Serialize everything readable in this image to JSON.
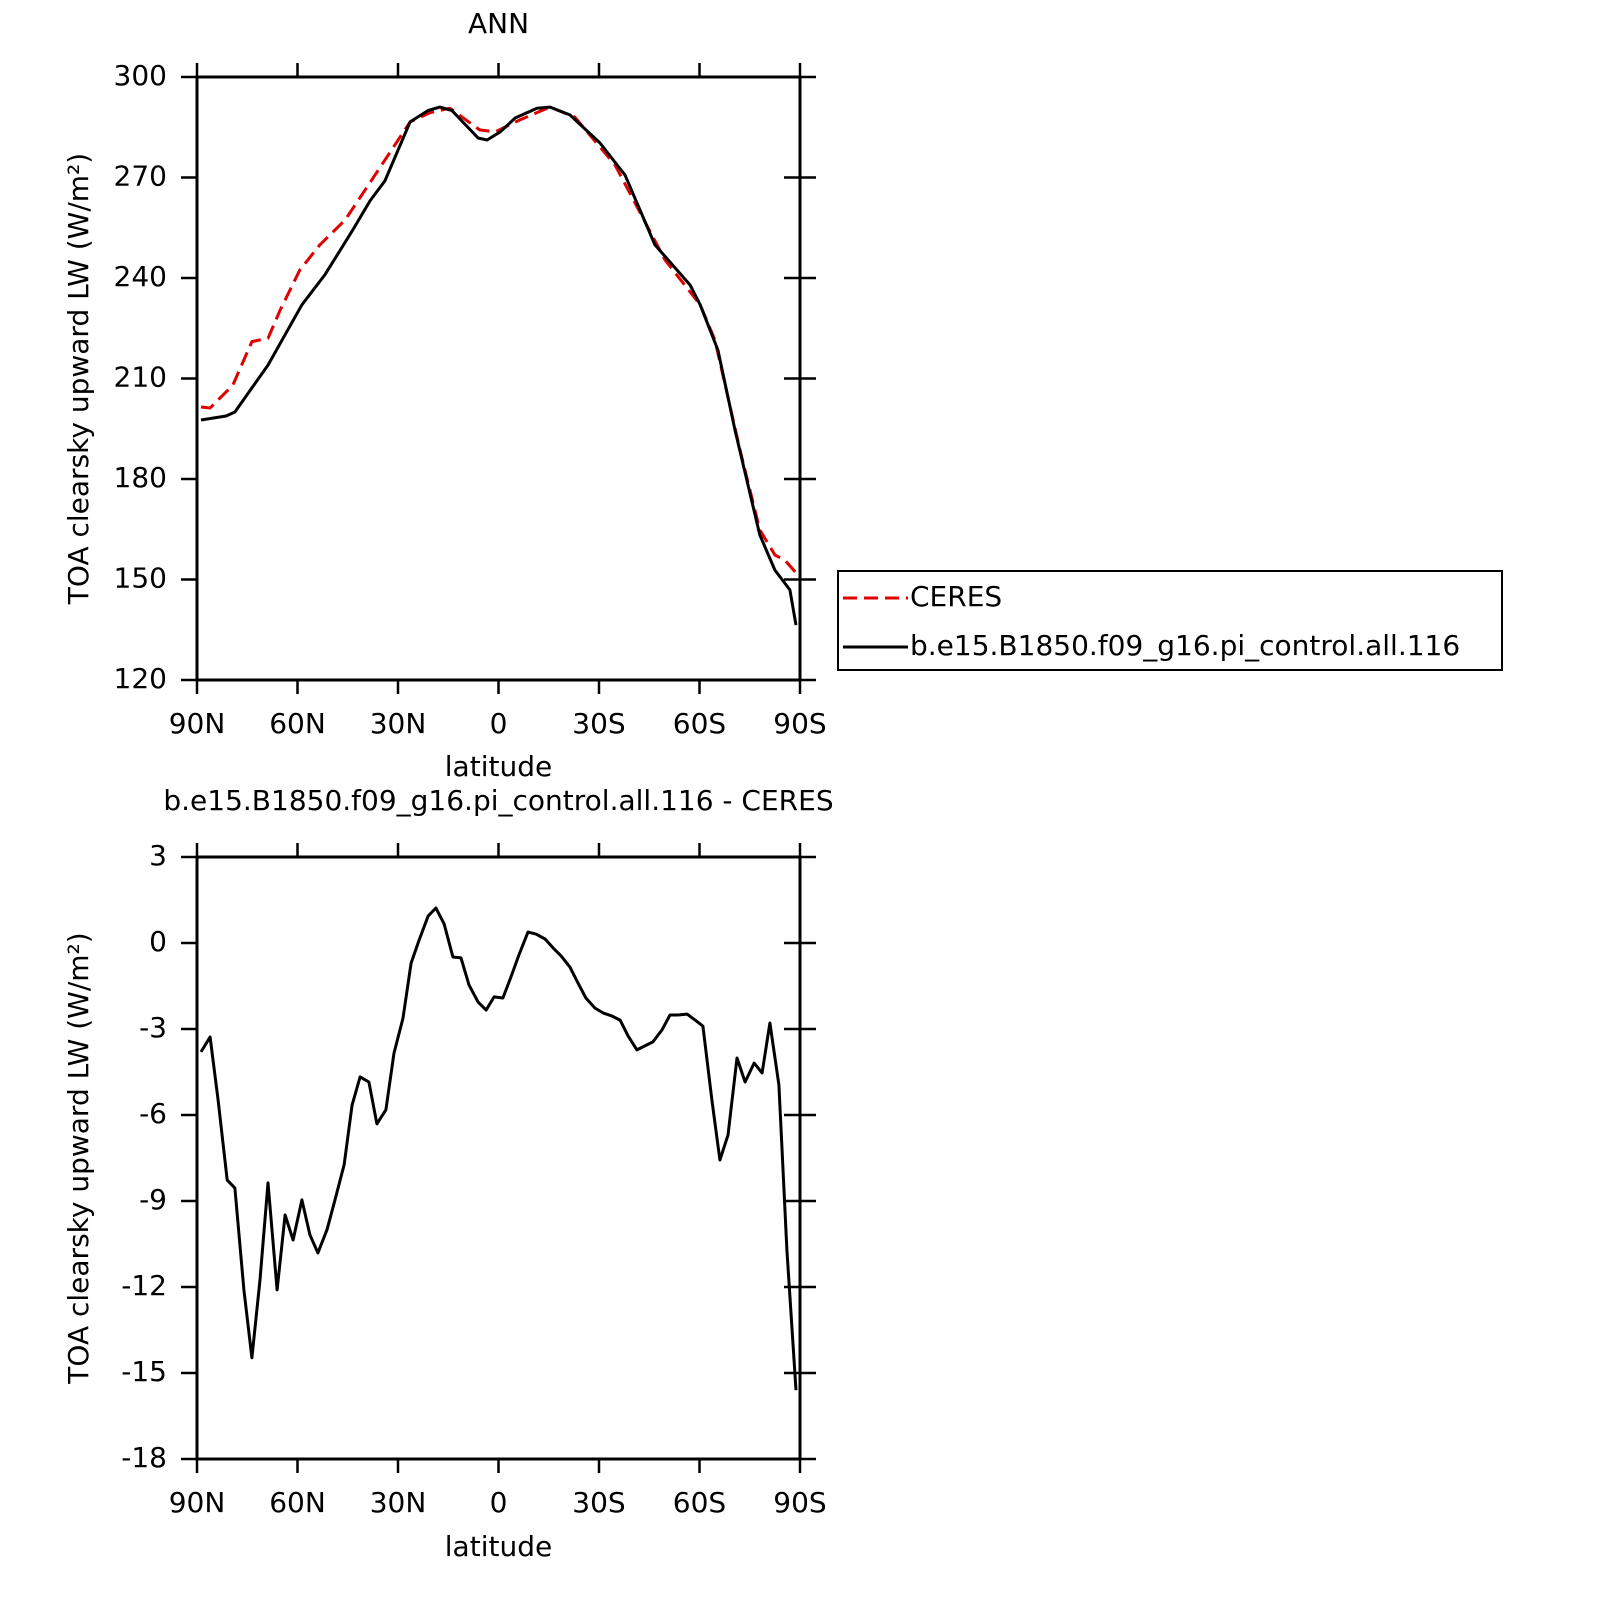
{
  "chart_data": [
    {
      "type": "line",
      "title": "ANN",
      "xlabel": "latitude",
      "ylabel": "TOA clearsky upward LW (W/m²)",
      "xlim": [
        90,
        -90
      ],
      "xticks": [
        {
          "value": 90,
          "label": "90N"
        },
        {
          "value": 60,
          "label": "60N"
        },
        {
          "value": 30,
          "label": "30N"
        },
        0,
        {
          "value": -30,
          "label": "30S"
        },
        {
          "value": -60,
          "label": "60S"
        },
        {
          "value": -90,
          "label": "90S"
        }
      ],
      "ylim": [
        120,
        300
      ],
      "yticks": [
        120,
        150,
        180,
        210,
        240,
        270,
        300
      ],
      "legend": "right",
      "series": [
        {
          "name": "CERES",
          "color": "#e00000",
          "dashed": true,
          "x": [
            88.8,
            86.1,
            79.3,
            73.6,
            68.8,
            65.2,
            59.3,
            53.3,
            45.8,
            36.9,
            26.4,
            20.5,
            14.5,
            5.6,
            1,
            -6.4,
            -15.4,
            -22.8,
            -34.8,
            -49.7,
            -60.2,
            -64.6,
            -72.1,
            -78,
            -82.5,
            -85.5,
            -89.4
          ],
          "values": [
            201.5,
            201.2,
            208,
            221,
            222,
            230.4,
            242.4,
            249.9,
            257.3,
            270.7,
            286.6,
            289.3,
            290.7,
            284.2,
            283.6,
            287.2,
            291,
            288,
            273.7,
            245.4,
            232,
            221.5,
            188.7,
            164.8,
            157.3,
            155.8,
            151.3
          ]
        },
        {
          "name": "b.e15.B1850.f09_g16.pi_control.all.116",
          "color": "#000000",
          "dashed": false,
          "x": [
            88.8,
            81.3,
            78.7,
            68.8,
            58.7,
            51.8,
            43.7,
            38.4,
            33.9,
            26.4,
            21,
            17.5,
            13.9,
            6.1,
            3.4,
            -0.5,
            -5,
            -11.5,
            -15.4,
            -21.3,
            -30.3,
            -37.8,
            -46.7,
            -57.2,
            -60.2,
            -65.5,
            -70.6,
            -78,
            -82.5,
            -87,
            -88.8
          ],
          "values": [
            197.6,
            198.8,
            200,
            214,
            232,
            241,
            254,
            263,
            269,
            286.6,
            290,
            291,
            290,
            281.8,
            281.2,
            283.6,
            287.8,
            290.7,
            291,
            288.7,
            280.3,
            270.7,
            249.9,
            237.9,
            232,
            218.5,
            194.6,
            163.3,
            152.8,
            146.9,
            136.4
          ]
        }
      ]
    },
    {
      "type": "line",
      "title": "b.e15.B1850.f09_g16.pi_control.all.116 - CERES",
      "xlabel": "latitude",
      "ylabel": "TOA clearsky upward LW (W/m²)",
      "xlim": [
        90,
        -90
      ],
      "xticks": [
        {
          "value": 90,
          "label": "90N"
        },
        {
          "value": 60,
          "label": "60N"
        },
        {
          "value": 30,
          "label": "30N"
        },
        0,
        {
          "value": -30,
          "label": "30S"
        },
        {
          "value": -60,
          "label": "60S"
        },
        {
          "value": -90,
          "label": "90S"
        }
      ],
      "ylim": [
        -18,
        3
      ],
      "yticks": [
        -18,
        -15,
        -12,
        -9,
        -6,
        -3,
        0,
        3
      ],
      "series": [
        {
          "color": "#000000",
          "dashed": false,
          "x": [
            88.8,
            86.1,
            83.7,
            81,
            78.7,
            76,
            73.6,
            71.2,
            68.8,
            66.1,
            63.7,
            61.3,
            58.7,
            56.3,
            53.9,
            51.2,
            48.8,
            46.1,
            43.7,
            41.3,
            38.7,
            36.3,
            33.6,
            31.2,
            28.5,
            26.1,
            23.7,
            21,
            18.7,
            16.2,
            13.6,
            11.2,
            8.8,
            6.1,
            3.7,
            1.3,
            -1.3,
            -3.7,
            -6.1,
            -8.8,
            -11.2,
            -13.9,
            -16.3,
            -18.7,
            -21.3,
            -23.7,
            -26.1,
            -28.8,
            -31.2,
            -33.9,
            -36.3,
            -38.7,
            -41.3,
            -43.7,
            -46.1,
            -48.8,
            -51.2,
            -53.6,
            -56.3,
            -58.7,
            -61,
            -63.7,
            -66.1,
            -68.5,
            -71.2,
            -73.6,
            -76.3,
            -78.7,
            -81,
            -83.7,
            -86.1,
            -88.8
          ],
          "values": [
            -3.8,
            -3.28,
            -5.48,
            -8.27,
            -8.55,
            -12.1,
            -14.47,
            -11.75,
            -8.37,
            -12.1,
            -9.49,
            -10.36,
            -8.96,
            -10.18,
            -10.81,
            -10,
            -8.96,
            -7.74,
            -5.65,
            -4.67,
            -4.85,
            -6.31,
            -5.82,
            -3.84,
            -2.62,
            -0.7,
            0.1,
            0.94,
            1.22,
            0.66,
            -0.49,
            -0.52,
            -1.46,
            -2.06,
            -2.34,
            -1.88,
            -1.92,
            -1.19,
            -0.42,
            0.38,
            0.31,
            0.14,
            -0.17,
            -0.45,
            -0.84,
            -1.39,
            -1.92,
            -2.27,
            -2.44,
            -2.55,
            -2.69,
            -3.24,
            -3.73,
            -3.59,
            -3.45,
            -3.03,
            -2.51,
            -2.51,
            -2.48,
            -2.69,
            -2.9,
            -5.48,
            -7.57,
            -6.7,
            -4.01,
            -4.85,
            -4.19,
            -4.53,
            -2.79,
            -4.95,
            -10.71,
            -15.6
          ]
        }
      ]
    }
  ]
}
